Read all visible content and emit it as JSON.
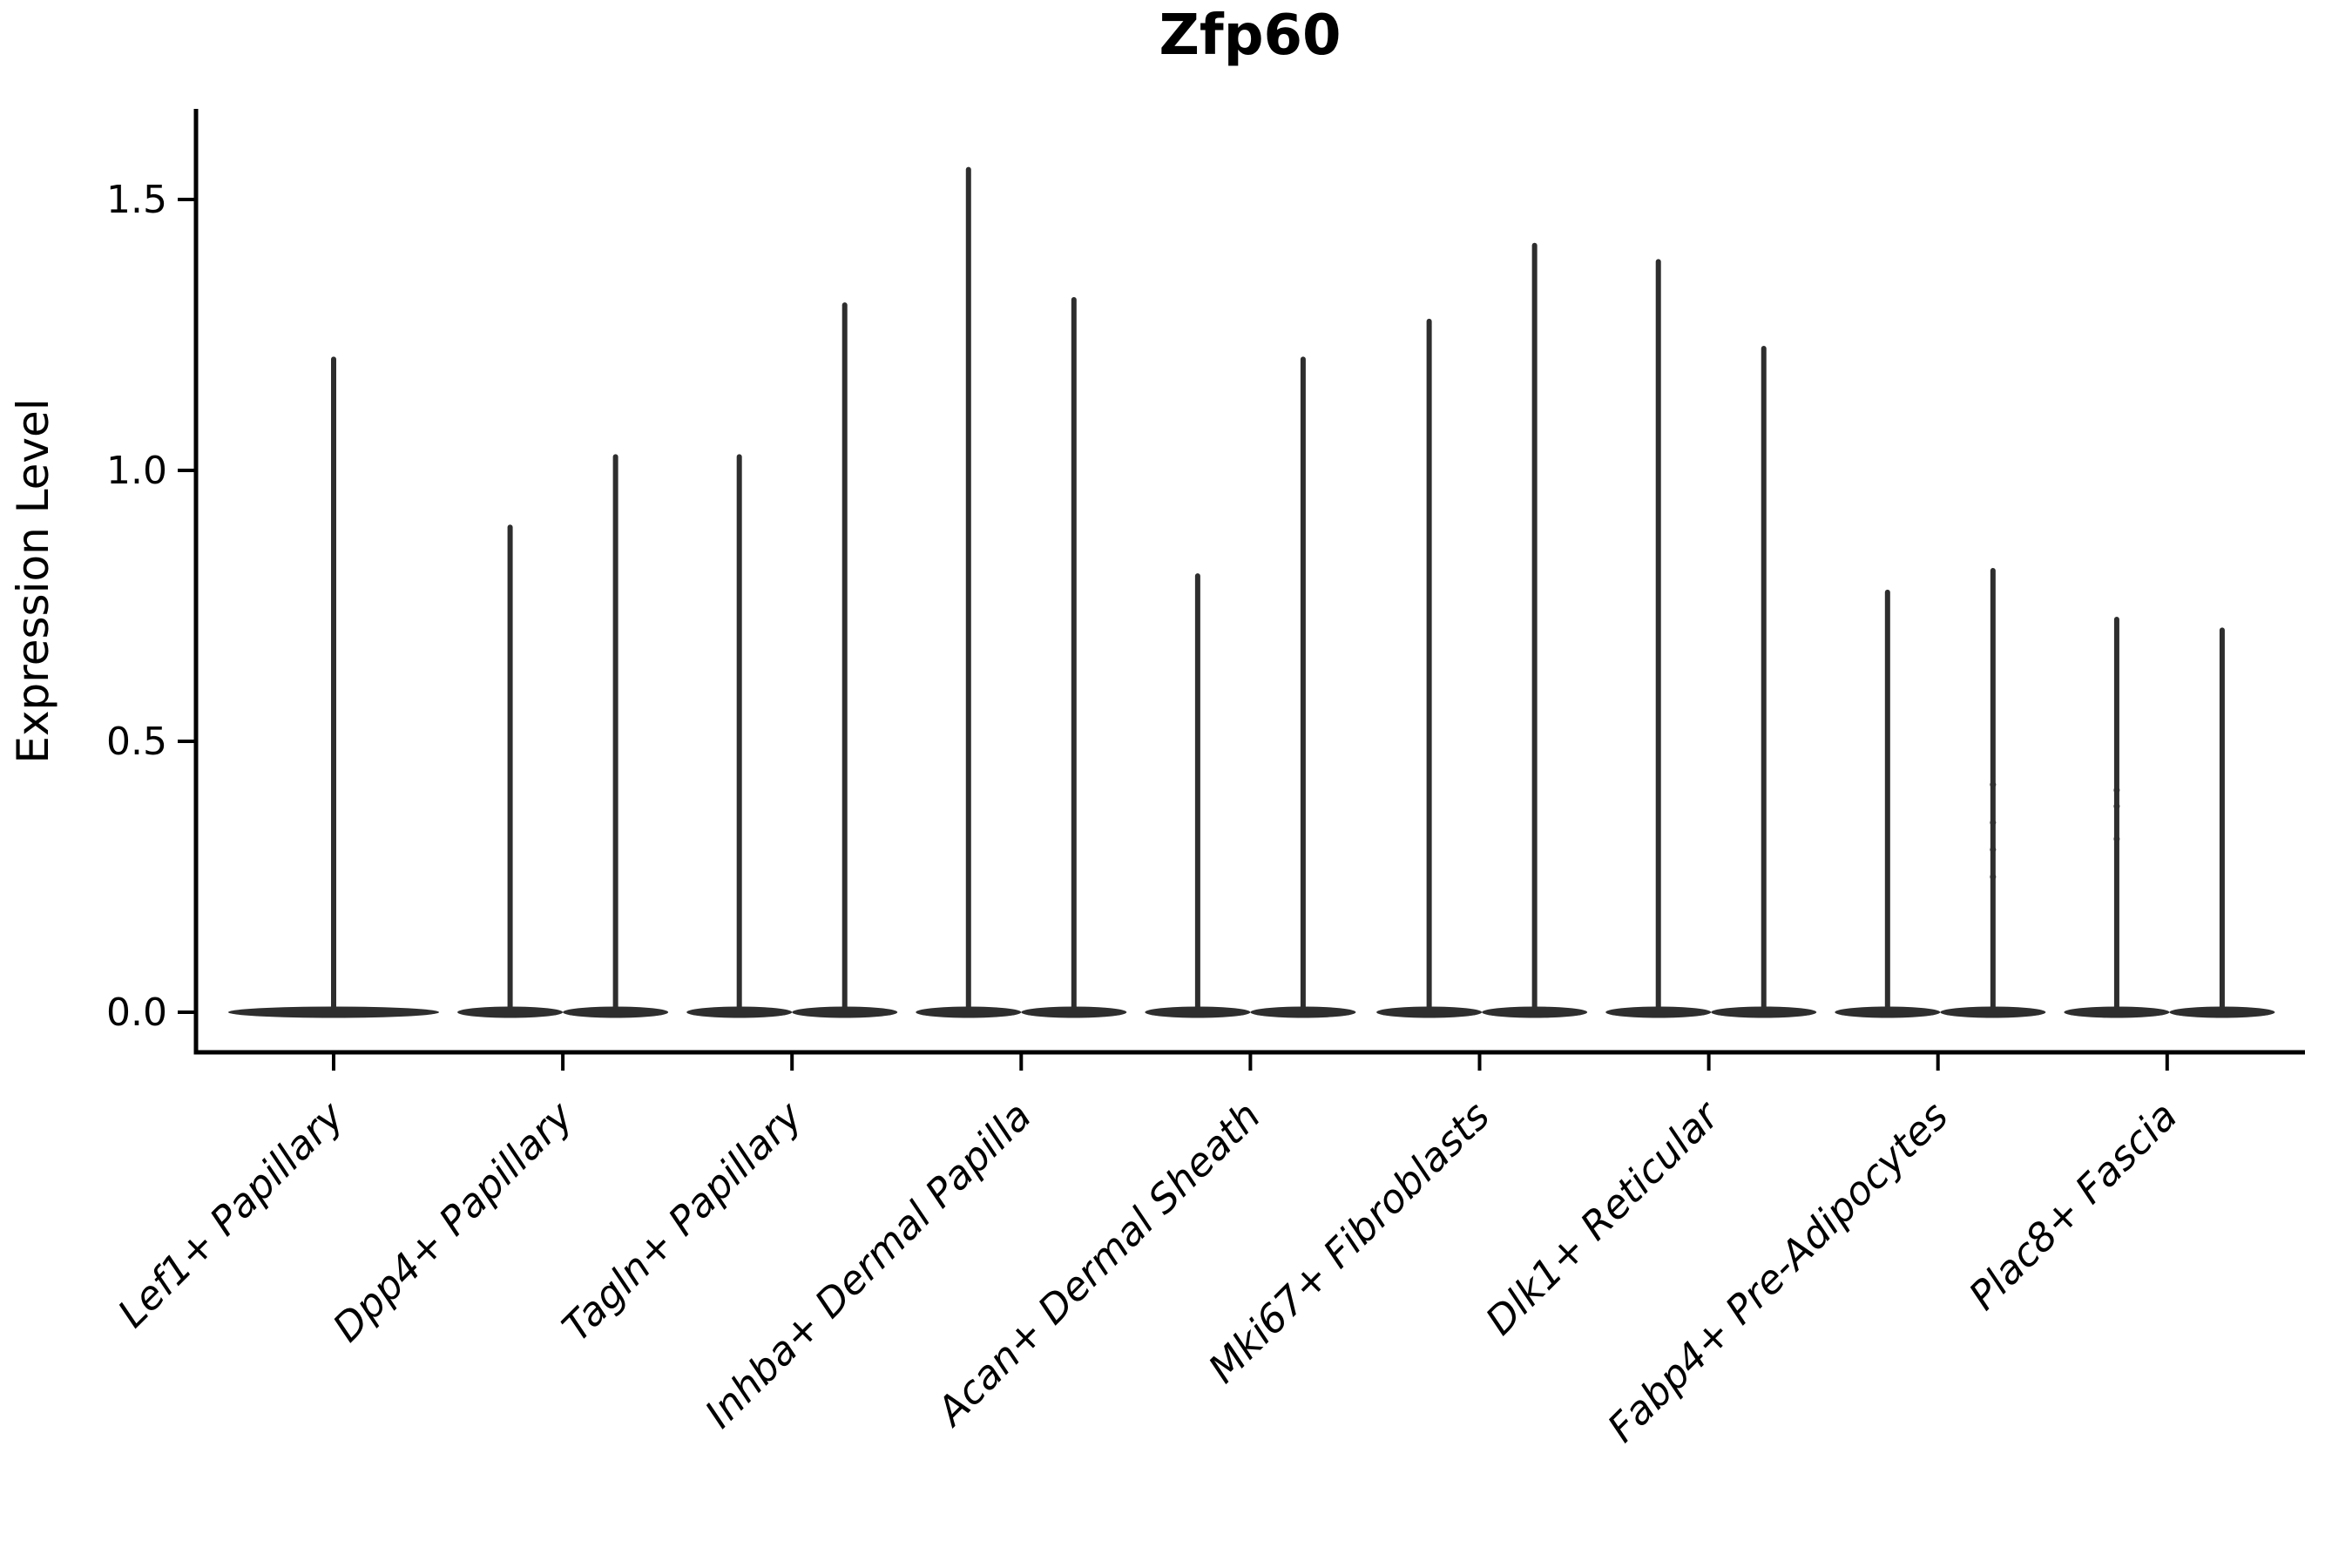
{
  "title": "Zfp60",
  "y_axis": {
    "label": "Expression Level"
  },
  "chart_data": {
    "type": "violin",
    "title": "Zfp60",
    "xlabel": "",
    "ylabel": "Expression Level",
    "ylim": [
      -0.07,
      1.66
    ],
    "grid": false,
    "legend": "none",
    "y_ticks": [
      0.0,
      0.5,
      1.0,
      1.5
    ],
    "y_tick_labels": [
      "0.0",
      "0.5",
      "1.0",
      "1.5"
    ],
    "categories": [
      "Lef1+ Papillary",
      "Dpp4+ Papillary",
      "Tagln+ Papillary",
      "Inhba+ Dermal Papilla",
      "Acan+ Dermal Sheath",
      "Mki67+ Fibroblasts",
      "Dlk1+ Reticular",
      "Fabp4+ Pre-Adipocytes",
      "Plac8+ Fascia"
    ],
    "series": [
      {
        "category": "Lef1+ Papillary",
        "violins": [
          {
            "offset": 0.0,
            "max": 1.21,
            "points": []
          }
        ]
      },
      {
        "category": "Dpp4+ Papillary",
        "violins": [
          {
            "offset": -0.23,
            "max": 0.9,
            "points": []
          },
          {
            "offset": 0.23,
            "max": 1.03,
            "points": []
          }
        ]
      },
      {
        "category": "Tagln+ Papillary",
        "violins": [
          {
            "offset": -0.23,
            "max": 1.03,
            "points": []
          },
          {
            "offset": 0.23,
            "max": 1.31,
            "points": []
          }
        ]
      },
      {
        "category": "Inhba+ Dermal Papilla",
        "violins": [
          {
            "offset": -0.23,
            "max": 1.56,
            "points": []
          },
          {
            "offset": 0.23,
            "max": 1.32,
            "points": []
          }
        ]
      },
      {
        "category": "Acan+ Dermal Sheath",
        "violins": [
          {
            "offset": -0.23,
            "max": 0.81,
            "points": []
          },
          {
            "offset": 0.23,
            "max": 1.21,
            "points": []
          }
        ]
      },
      {
        "category": "Mki67+ Fibroblasts",
        "violins": [
          {
            "offset": -0.22,
            "max": 1.28,
            "points": []
          },
          {
            "offset": 0.24,
            "max": 1.42,
            "points": []
          }
        ]
      },
      {
        "category": "Dlk1+ Reticular",
        "violins": [
          {
            "offset": -0.22,
            "max": 1.39,
            "points": []
          },
          {
            "offset": 0.24,
            "max": 1.23,
            "points": []
          }
        ]
      },
      {
        "category": "Fabp4+ Pre-Adipocytes",
        "violins": [
          {
            "offset": -0.22,
            "max": 0.78,
            "points": []
          },
          {
            "offset": 0.24,
            "max": 0.82,
            "points": [
              0.42,
              0.35,
              0.3,
              0.25
            ]
          }
        ]
      },
      {
        "category": "Plac8+ Fascia",
        "violins": [
          {
            "offset": -0.22,
            "max": 0.73,
            "points": [
              0.41,
              0.38,
              0.32
            ]
          },
          {
            "offset": 0.24,
            "max": 0.71,
            "points": []
          }
        ]
      }
    ],
    "violin_body_width": 0.92,
    "violin_body_thickness": 13,
    "colors": {
      "violin": "#2e2e2e",
      "axis": "#000000",
      "text": "#000000",
      "background": "#ffffff"
    }
  }
}
